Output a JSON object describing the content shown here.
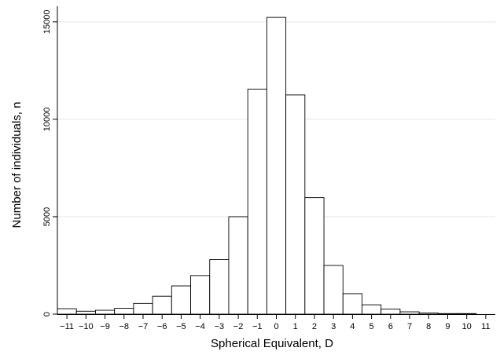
{
  "chart_data": {
    "type": "bar",
    "xlabel": "Spherical Equivalent, D",
    "ylabel": "Number of individuals, n",
    "xlim": [
      -11.5,
      11.5
    ],
    "ylim": [
      0,
      15800
    ],
    "x_ticks": [
      -11,
      -10,
      -9,
      -8,
      -7,
      -6,
      -5,
      -4,
      -3,
      -2,
      -1,
      0,
      1,
      2,
      3,
      4,
      5,
      6,
      7,
      8,
      9,
      10,
      11
    ],
    "x_tick_labels": [
      "−11",
      "−10",
      "−9",
      "−8",
      "−7",
      "−6",
      "−5",
      "−4",
      "−3",
      "−2",
      "−1",
      "0",
      "1",
      "2",
      "3",
      "4",
      "5",
      "6",
      "7",
      "8",
      "9",
      "10",
      "11"
    ],
    "y_ticks": [
      0,
      5000,
      10000,
      15000
    ],
    "y_tick_labels": [
      "0",
      "5000",
      "10000",
      "15000"
    ],
    "bin_width": 1,
    "bin_starts": [
      -11.5,
      -10.5,
      -9.5,
      -8.5,
      -7.5,
      -6.5,
      -5.5,
      -4.5,
      -3.5,
      -2.5,
      -1.5,
      -0.5,
      0.5,
      1.5,
      2.5,
      3.5,
      4.5,
      5.5,
      6.5,
      7.5,
      8.5,
      9.5
    ],
    "values": [
      280,
      150,
      200,
      300,
      550,
      920,
      1450,
      1980,
      2800,
      5000,
      11550,
      15230,
      11250,
      5980,
      2500,
      1050,
      480,
      260,
      120,
      60,
      30,
      30
    ],
    "grid": true,
    "bar_fill": "#ffffff",
    "bar_stroke": "#000000",
    "grid_color": "#e6e6e6"
  }
}
